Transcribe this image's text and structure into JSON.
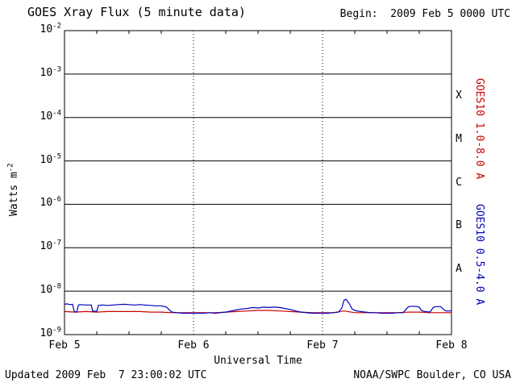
{
  "header": {
    "begin": "Begin:  2009 Feb 5 0000 UTC"
  },
  "footer": {
    "updated": "Updated 2009 Feb  7 23:00:02 UTC",
    "source": "NOAA/SWPC Boulder, CO USA"
  },
  "chart_data": {
    "type": "line",
    "title": "GOES Xray Flux (5 minute data)",
    "xlabel": "Universal Time",
    "ylabel": "Watts m-2",
    "ylabel_parts": {
      "base": "Watts m",
      "exp": "-2"
    },
    "yscale": "log",
    "ylim": [
      1e-09,
      0.01
    ],
    "x_unit": "hours since 2009 Feb 5 0000 UTC",
    "xlim": [
      0,
      72
    ],
    "x_minor_tick_hours": 6,
    "x_ticks": [
      {
        "t": 0,
        "label": "Feb 5"
      },
      {
        "t": 24,
        "label": "Feb 6"
      },
      {
        "t": 48,
        "label": "Feb 7"
      },
      {
        "t": 72,
        "label": "Feb 8"
      }
    ],
    "y_tick_exponents": [
      -2,
      -3,
      -4,
      -5,
      -6,
      -7,
      -8,
      -9
    ],
    "flare_classes": [
      {
        "label": "X",
        "exponent": -3.5
      },
      {
        "label": "M",
        "exponent": -4.5
      },
      {
        "label": "C",
        "exponent": -5.5
      },
      {
        "label": "B",
        "exponent": -6.5
      },
      {
        "label": "A",
        "exponent": -7.5
      }
    ],
    "grid": {
      "horizontal": "solid black line at each decade",
      "vertical": "dotted black line at each day boundary"
    },
    "legend_position": "right-rotated",
    "axis_color": "#000000",
    "background": "#ffffff",
    "series": [
      {
        "name": "GOES10 1.0-8.0 A",
        "color": "#cc0000",
        "points": [
          [
            0,
            3.4e-09
          ],
          [
            2,
            3.3e-09
          ],
          [
            4,
            3.4e-09
          ],
          [
            6,
            3.3e-09
          ],
          [
            8,
            3.4e-09
          ],
          [
            10,
            3.4e-09
          ],
          [
            12,
            3.4e-09
          ],
          [
            14,
            3.4e-09
          ],
          [
            16,
            3.3e-09
          ],
          [
            18,
            3.3e-09
          ],
          [
            20,
            3.2e-09
          ],
          [
            22,
            3.2e-09
          ],
          [
            24,
            3.2e-09
          ],
          [
            26,
            3.2e-09
          ],
          [
            28,
            3.2e-09
          ],
          [
            30,
            3.3e-09
          ],
          [
            32,
            3.4e-09
          ],
          [
            34,
            3.5e-09
          ],
          [
            36,
            3.6e-09
          ],
          [
            38,
            3.6e-09
          ],
          [
            40,
            3.5e-09
          ],
          [
            42,
            3.4e-09
          ],
          [
            44,
            3.3e-09
          ],
          [
            46,
            3.2e-09
          ],
          [
            48,
            3.2e-09
          ],
          [
            50,
            3.2e-09
          ],
          [
            52,
            3.5e-09
          ],
          [
            54,
            3.2e-09
          ],
          [
            56,
            3.2e-09
          ],
          [
            58,
            3.2e-09
          ],
          [
            60,
            3.2e-09
          ],
          [
            62,
            3.2e-09
          ],
          [
            64,
            3.3e-09
          ],
          [
            66,
            3.3e-09
          ],
          [
            68,
            3.2e-09
          ],
          [
            70,
            3.2e-09
          ],
          [
            72,
            3.2e-09
          ]
        ]
      },
      {
        "name": "GOES10 0.5-4.0 A",
        "color": "#0000bb",
        "points": [
          [
            0,
            5e-09
          ],
          [
            0.5,
            5.1e-09
          ],
          [
            1,
            4.9e-09
          ],
          [
            1.5,
            5e-09
          ],
          [
            1.8,
            3.4e-09
          ],
          [
            2.3,
            3.3e-09
          ],
          [
            2.6,
            4.8e-09
          ],
          [
            3,
            4.9e-09
          ],
          [
            4,
            4.8e-09
          ],
          [
            5,
            4.8e-09
          ],
          [
            5.2,
            3.5e-09
          ],
          [
            6,
            3.4e-09
          ],
          [
            6.3,
            4.7e-09
          ],
          [
            7,
            4.8e-09
          ],
          [
            8,
            4.7e-09
          ],
          [
            9,
            4.8e-09
          ],
          [
            10,
            4.9e-09
          ],
          [
            11,
            5e-09
          ],
          [
            12,
            4.9e-09
          ],
          [
            13,
            4.8e-09
          ],
          [
            14,
            4.9e-09
          ],
          [
            15,
            4.8e-09
          ],
          [
            16,
            4.7e-09
          ],
          [
            17,
            4.6e-09
          ],
          [
            18,
            4.6e-09
          ],
          [
            19,
            4.3e-09
          ],
          [
            19.5,
            3.7e-09
          ],
          [
            20,
            3.3e-09
          ],
          [
            21,
            3.2e-09
          ],
          [
            22,
            3.1e-09
          ],
          [
            23,
            3.1e-09
          ],
          [
            24,
            3.1e-09
          ],
          [
            25,
            3.1e-09
          ],
          [
            26,
            3.1e-09
          ],
          [
            27,
            3.2e-09
          ],
          [
            28,
            3.1e-09
          ],
          [
            29,
            3.2e-09
          ],
          [
            30,
            3.3e-09
          ],
          [
            31,
            3.5e-09
          ],
          [
            32,
            3.7e-09
          ],
          [
            33,
            3.9e-09
          ],
          [
            34,
            4e-09
          ],
          [
            35,
            4.2e-09
          ],
          [
            36,
            4.1e-09
          ],
          [
            37,
            4.3e-09
          ],
          [
            38,
            4.2e-09
          ],
          [
            39,
            4.3e-09
          ],
          [
            40,
            4.2e-09
          ],
          [
            41,
            4e-09
          ],
          [
            42,
            3.8e-09
          ],
          [
            43,
            3.5e-09
          ],
          [
            44,
            3.3e-09
          ],
          [
            45,
            3.2e-09
          ],
          [
            46,
            3.1e-09
          ],
          [
            47,
            3.1e-09
          ],
          [
            48,
            3.1e-09
          ],
          [
            49,
            3.1e-09
          ],
          [
            50,
            3.2e-09
          ],
          [
            51,
            3.3e-09
          ],
          [
            51.6,
            4.1e-09
          ],
          [
            52,
            6.2e-09
          ],
          [
            52.4,
            6.5e-09
          ],
          [
            53,
            5.1e-09
          ],
          [
            53.5,
            3.9e-09
          ],
          [
            54,
            3.6e-09
          ],
          [
            55,
            3.4e-09
          ],
          [
            56,
            3.3e-09
          ],
          [
            57,
            3.2e-09
          ],
          [
            58,
            3.2e-09
          ],
          [
            59,
            3.1e-09
          ],
          [
            60,
            3.1e-09
          ],
          [
            61,
            3.1e-09
          ],
          [
            62,
            3.2e-09
          ],
          [
            63,
            3.2e-09
          ],
          [
            63.6,
            3.9e-09
          ],
          [
            64,
            4.4e-09
          ],
          [
            65,
            4.5e-09
          ],
          [
            65.6,
            4.4e-09
          ],
          [
            66,
            4.3e-09
          ],
          [
            66.4,
            3.6e-09
          ],
          [
            67,
            3.4e-09
          ],
          [
            68,
            3.3e-09
          ],
          [
            68.6,
            4.2e-09
          ],
          [
            69,
            4.4e-09
          ],
          [
            70,
            4.4e-09
          ],
          [
            70.6,
            3.7e-09
          ],
          [
            71,
            3.5e-09
          ],
          [
            72,
            3.5e-09
          ]
        ]
      }
    ]
  }
}
